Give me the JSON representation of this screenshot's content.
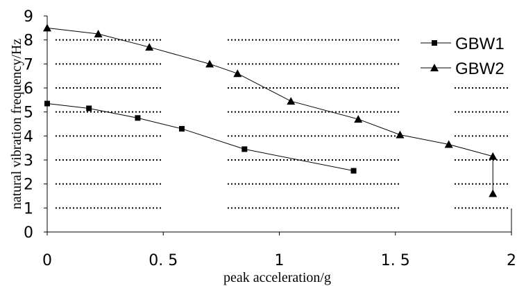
{
  "chart_data": {
    "type": "line",
    "title": "",
    "xlabel": "peak acceleration/g",
    "ylabel": "natural vibration frequency/Hz",
    "xlim": [
      0,
      2
    ],
    "ylim": [
      0,
      9
    ],
    "x_ticks": [
      {
        "value": 0,
        "label": "0"
      },
      {
        "value": 0.5,
        "label": "0. 5"
      },
      {
        "value": 1,
        "label": "1"
      },
      {
        "value": 1.5,
        "label": "1. 5"
      },
      {
        "value": 2,
        "label": "2"
      }
    ],
    "y_ticks": [
      {
        "value": 0,
        "label": "0"
      },
      {
        "value": 1,
        "label": "1"
      },
      {
        "value": 2,
        "label": "2"
      },
      {
        "value": 3,
        "label": "3"
      },
      {
        "value": 4,
        "label": "4"
      },
      {
        "value": 5,
        "label": "5"
      },
      {
        "value": 6,
        "label": "6"
      },
      {
        "value": 7,
        "label": "7"
      },
      {
        "value": 8,
        "label": "8"
      },
      {
        "value": 9,
        "label": "9"
      }
    ],
    "grid": "horizontal dotted",
    "legend_position": "top-right",
    "series": [
      {
        "name": "GBW1",
        "marker": "square",
        "points": [
          {
            "x": 0.0,
            "y": 5.35
          },
          {
            "x": 0.18,
            "y": 5.15
          },
          {
            "x": 0.39,
            "y": 4.75
          },
          {
            "x": 0.58,
            "y": 4.3
          },
          {
            "x": 0.85,
            "y": 3.45
          },
          {
            "x": 1.32,
            "y": 2.55
          }
        ]
      },
      {
        "name": "GBW2",
        "marker": "triangle",
        "points": [
          {
            "x": 0.0,
            "y": 8.5
          },
          {
            "x": 0.22,
            "y": 8.25
          },
          {
            "x": 0.44,
            "y": 7.7
          },
          {
            "x": 0.7,
            "y": 7.0
          },
          {
            "x": 0.82,
            "y": 6.6
          },
          {
            "x": 1.05,
            "y": 5.45
          },
          {
            "x": 1.34,
            "y": 4.7
          },
          {
            "x": 1.52,
            "y": 4.05
          },
          {
            "x": 1.73,
            "y": 3.65
          },
          {
            "x": 1.92,
            "y": 3.15
          },
          {
            "x": 1.92,
            "y": 1.6
          }
        ]
      }
    ]
  }
}
